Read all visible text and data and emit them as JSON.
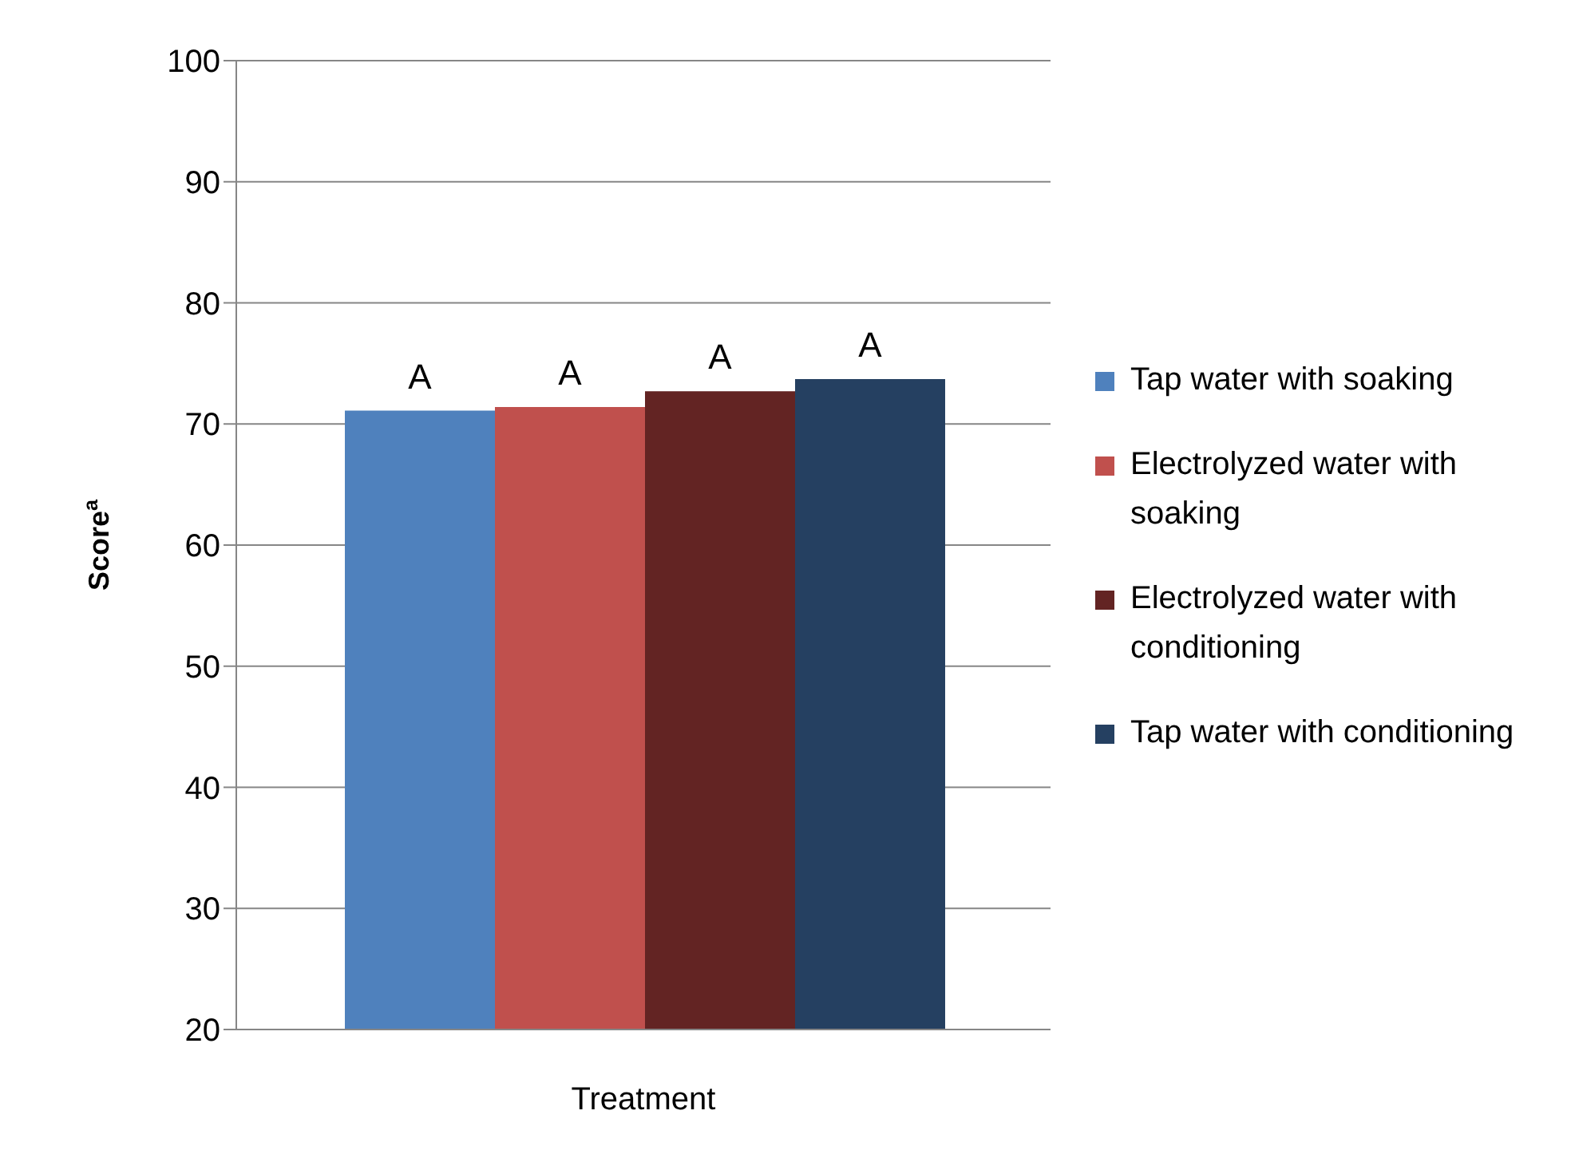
{
  "chart_data": {
    "type": "bar",
    "xlabel": "Treatment",
    "ylabel": "Score$^{a}$",
    "categories": [
      null
    ],
    "series": [
      {
        "name": "Tap water with soaking",
        "color": "#4f81bd",
        "values": [
          71.1
        ],
        "value_labels": [
          "A"
        ]
      },
      {
        "name": "Electrolyzed water with soaking",
        "color": "#c0504d",
        "values": [
          71.4
        ],
        "value_labels": [
          "A"
        ]
      },
      {
        "name": "Electrolyzed water with conditioning",
        "color": "#632423",
        "values": [
          72.7
        ],
        "value_labels": [
          "A"
        ]
      },
      {
        "name": "Tap water with conditioning",
        "color": "#254061",
        "values": [
          73.7
        ],
        "value_labels": [
          "A"
        ]
      }
    ],
    "ylim": [
      20,
      100
    ],
    "yticks": [
      20,
      30,
      40,
      50,
      60,
      70,
      80,
      90,
      100
    ],
    "grid": "y",
    "legend": "right"
  }
}
